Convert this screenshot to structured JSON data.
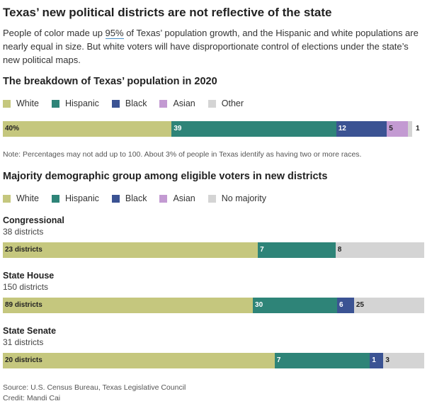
{
  "title": "Texas’ new political districts are not reflective of the state",
  "subtitle": {
    "before": "People of color made up ",
    "highlight": "95%",
    "after": " of Texas’ population growth, and the Hispanic and white populations are nearly equal in size. But white voters will have disproportionate control of elections under the state’s new political maps."
  },
  "colors": {
    "White": "#c5c77e",
    "Hispanic": "#2e8478",
    "Black": "#3b5393",
    "Asian": "#c39ad2",
    "Other": "#d4d4d4",
    "No majority": "#d4d4d4"
  },
  "chart_data": [
    {
      "type": "bar",
      "title": "The breakdown of Texas’ population in 2020",
      "legend": [
        "White",
        "Hispanic",
        "Black",
        "Asian",
        "Other"
      ],
      "series": [
        {
          "name": "White",
          "value": 40,
          "label": "40%"
        },
        {
          "name": "Hispanic",
          "value": 39,
          "label": "39"
        },
        {
          "name": "Black",
          "value": 12,
          "label": "12"
        },
        {
          "name": "Asian",
          "value": 5,
          "label": "5"
        },
        {
          "name": "Other",
          "value": 1,
          "label": "1"
        }
      ],
      "note": "Note: Percentages may not add up to 100. About 3% of people in Texas identify as having two or more races."
    },
    {
      "type": "bar",
      "title": "Majority demographic group among eligible voters in new districts",
      "legend": [
        "White",
        "Hispanic",
        "Black",
        "Asian",
        "No majority"
      ],
      "groups": [
        {
          "name": "Congressional",
          "subtitle": "38 districts",
          "total": 38,
          "series": [
            {
              "name": "White",
              "value": 23,
              "label": "23 districts"
            },
            {
              "name": "Hispanic",
              "value": 7,
              "label": "7"
            },
            {
              "name": "No majority",
              "value": 8,
              "label": "8"
            }
          ]
        },
        {
          "name": "State House",
          "subtitle": "150 districts",
          "total": 150,
          "series": [
            {
              "name": "White",
              "value": 89,
              "label": "89 districts"
            },
            {
              "name": "Hispanic",
              "value": 30,
              "label": "30"
            },
            {
              "name": "Black",
              "value": 6,
              "label": "6"
            },
            {
              "name": "No majority",
              "value": 25,
              "label": "25"
            }
          ]
        },
        {
          "name": "State Senate",
          "subtitle": "31 districts",
          "total": 31,
          "series": [
            {
              "name": "White",
              "value": 20,
              "label": "20 districts"
            },
            {
              "name": "Hispanic",
              "value": 7,
              "label": "7"
            },
            {
              "name": "Black",
              "value": 1,
              "label": "1"
            },
            {
              "name": "No majority",
              "value": 3,
              "label": "3"
            }
          ]
        }
      ]
    }
  ],
  "footer": {
    "source": "Source: U.S. Census Bureau, Texas Legislative Council",
    "credit": "Credit: Mandi Cai"
  }
}
